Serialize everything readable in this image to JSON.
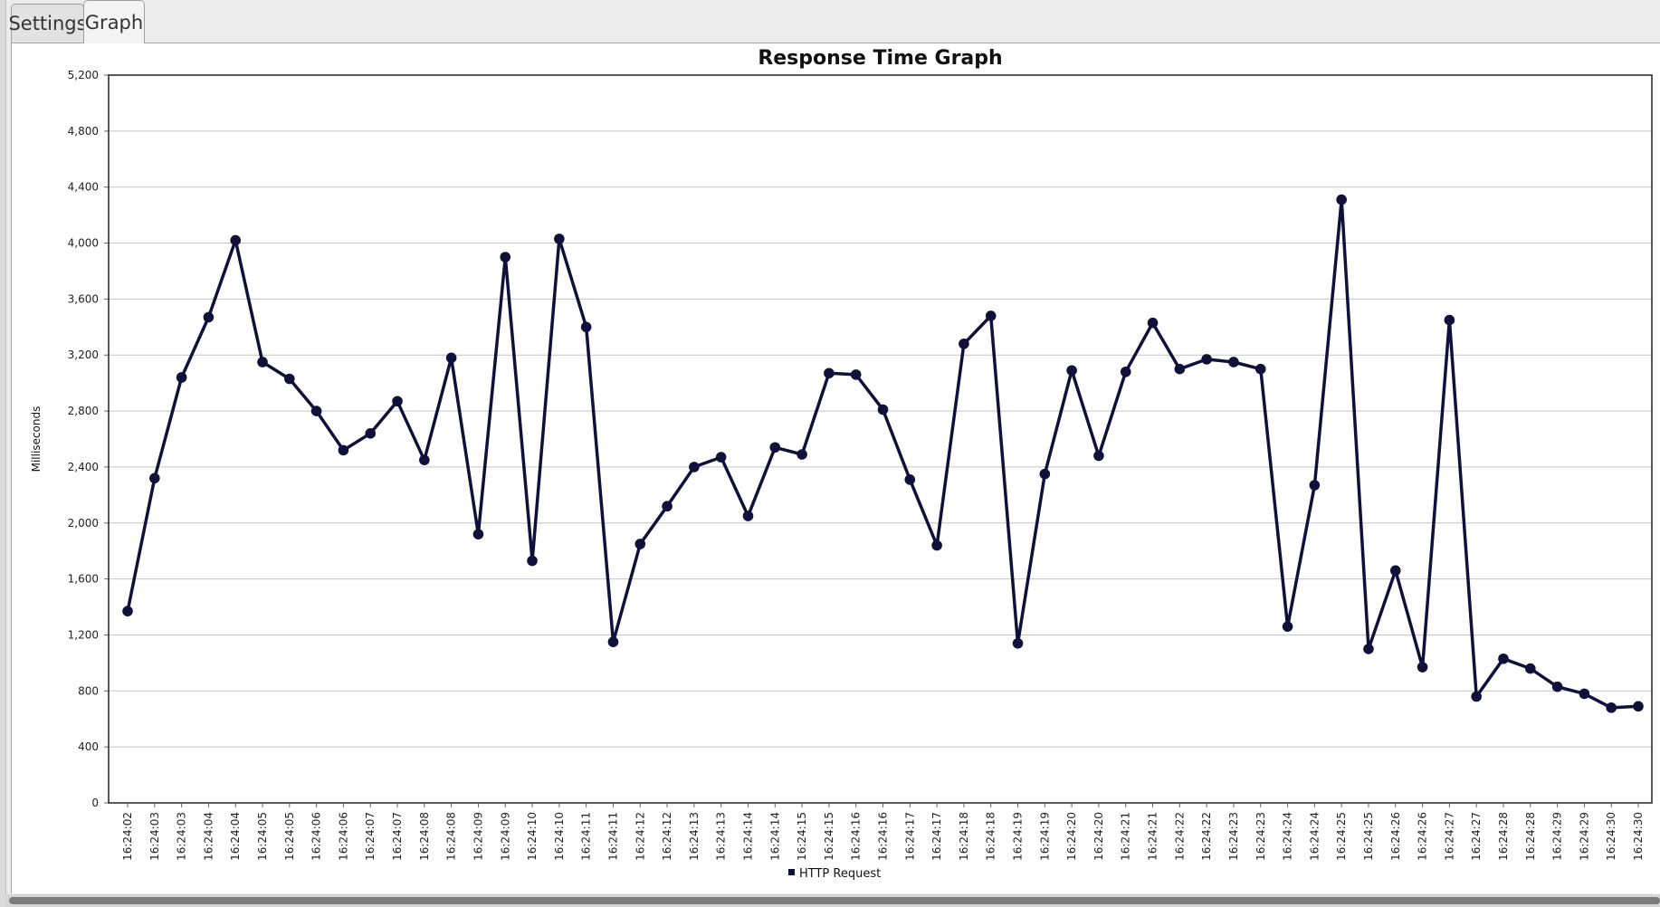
{
  "tabs": [
    {
      "label": "Settings",
      "active": false
    },
    {
      "label": "Graph",
      "active": true
    }
  ],
  "chart_data": {
    "type": "line",
    "title": "Response Time Graph",
    "xlabel": "",
    "ylabel": "Milliseconds",
    "ylim": [
      0,
      5200
    ],
    "yticks": [
      "0",
      "400",
      "800",
      "1,200",
      "1,600",
      "2,000",
      "2,400",
      "2,800",
      "3,200",
      "3,600",
      "4,000",
      "4,400",
      "4,800",
      "5,200"
    ],
    "grid": true,
    "legend_position": "bottom",
    "categories": [
      "16:24:02",
      "16:24:03",
      "16:24:03",
      "16:24:04",
      "16:24:04",
      "16:24:05",
      "16:24:05",
      "16:24:06",
      "16:24:06",
      "16:24:07",
      "16:24:07",
      "16:24:08",
      "16:24:08",
      "16:24:09",
      "16:24:09",
      "16:24:10",
      "16:24:10",
      "16:24:11",
      "16:24:11",
      "16:24:12",
      "16:24:12",
      "16:24:13",
      "16:24:13",
      "16:24:14",
      "16:24:14",
      "16:24:15",
      "16:24:15",
      "16:24:16",
      "16:24:16",
      "16:24:17",
      "16:24:17",
      "16:24:18",
      "16:24:18",
      "16:24:19",
      "16:24:19",
      "16:24:20",
      "16:24:20",
      "16:24:21",
      "16:24:21",
      "16:24:22",
      "16:24:22",
      "16:24:23",
      "16:24:23",
      "16:24:24",
      "16:24:24",
      "16:24:25",
      "16:24:25",
      "16:24:26",
      "16:24:26",
      "16:24:27",
      "16:24:27",
      "16:24:28",
      "16:24:28",
      "16:24:29",
      "16:24:29",
      "16:24:30",
      "16:24:30"
    ],
    "series": [
      {
        "name": "HTTP Request",
        "color": "#10103a",
        "values": [
          1370,
          2320,
          3040,
          3470,
          4020,
          3150,
          3030,
          2800,
          2520,
          2640,
          2870,
          2450,
          3180,
          1920,
          3900,
          1730,
          4030,
          3400,
          1150,
          1850,
          2120,
          2400,
          2470,
          2050,
          2540,
          2490,
          3070,
          3060,
          2810,
          2310,
          1840,
          3280,
          3480,
          1140,
          2350,
          3090,
          2480,
          3080,
          3430,
          3100,
          3170,
          3150,
          3100,
          1260,
          2270,
          4310,
          1100,
          1660,
          970,
          3450,
          760,
          1030,
          960,
          830,
          780,
          680,
          690
        ]
      }
    ]
  }
}
